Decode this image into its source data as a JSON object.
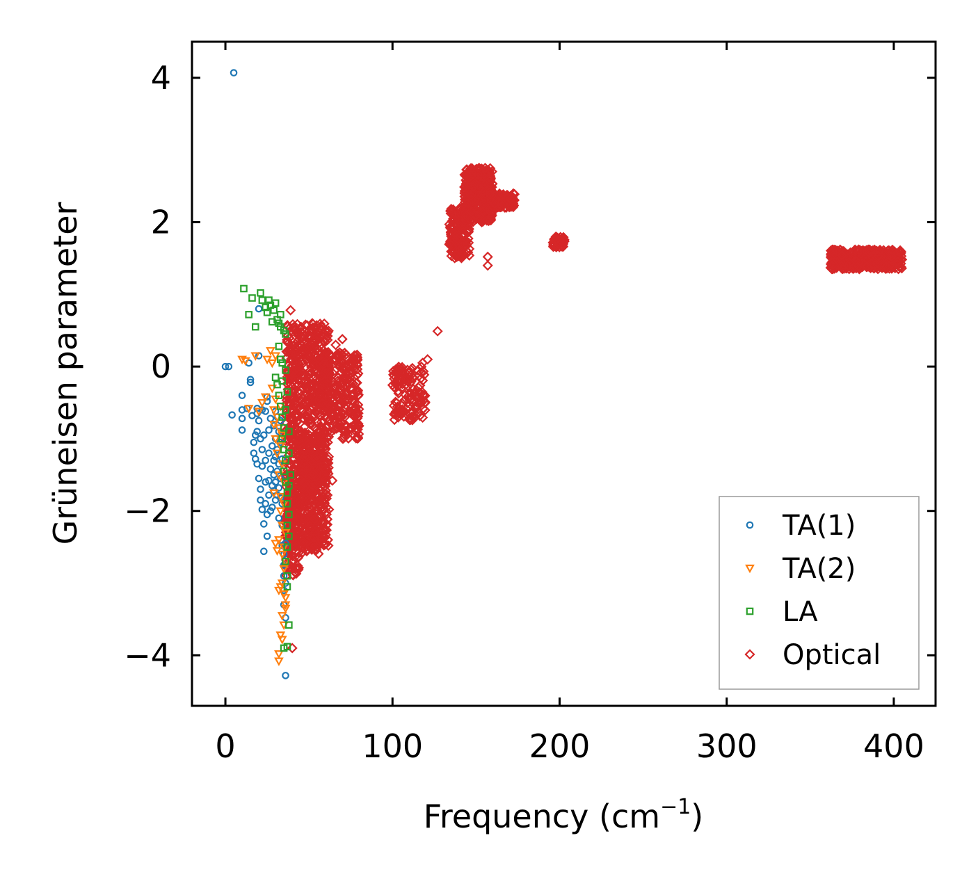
{
  "chart_data": {
    "type": "scatter",
    "title": "",
    "xlabel": "Frequency (cm",
    "xlabel_sup": "−1",
    "xlabel_close": ")",
    "ylabel": "Grüneisen parameter",
    "xlim": [
      -20,
      425
    ],
    "ylim": [
      -4.7,
      4.5
    ],
    "xticks": [
      0,
      100,
      200,
      300,
      400
    ],
    "xtick_labels": [
      "0",
      "100",
      "200",
      "300",
      "400"
    ],
    "yticks": [
      4,
      2,
      0,
      -2,
      -4
    ],
    "ytick_labels": [
      "4",
      "2",
      "0",
      "−2",
      "−4"
    ],
    "legend_position": "bottom-right",
    "grid": false,
    "series": [
      {
        "name": "TA(1)",
        "marker": "circle",
        "color": "#1f77b4",
        "points": [
          [
            5,
            4.07
          ],
          [
            0,
            0.0
          ],
          [
            2,
            0.0
          ],
          [
            4,
            -0.67
          ],
          [
            10,
            -0.4
          ],
          [
            10,
            -0.6
          ],
          [
            10,
            -0.72
          ],
          [
            10,
            -0.88
          ],
          [
            13,
            -0.58
          ],
          [
            14,
            0.05
          ],
          [
            15,
            -0.18
          ],
          [
            15,
            -0.22
          ],
          [
            16,
            -0.68
          ],
          [
            17,
            -1.05
          ],
          [
            17,
            -1.2
          ],
          [
            18,
            -0.95
          ],
          [
            18,
            -1.28
          ],
          [
            19,
            -0.58
          ],
          [
            19,
            -0.9
          ],
          [
            19,
            -1.35
          ],
          [
            20,
            0.15
          ],
          [
            20,
            0.8
          ],
          [
            20,
            -0.75
          ],
          [
            20,
            -1.55
          ],
          [
            21,
            -1.0
          ],
          [
            21,
            -1.7
          ],
          [
            21,
            -1.85
          ],
          [
            22,
            -0.6
          ],
          [
            22,
            -1.15
          ],
          [
            22,
            -1.38
          ],
          [
            22,
            -1.98
          ],
          [
            23,
            -2.18
          ],
          [
            23,
            -2.56
          ],
          [
            23,
            -0.95
          ],
          [
            24,
            -1.3
          ],
          [
            24,
            -1.6
          ],
          [
            24,
            -1.9
          ],
          [
            25,
            -0.42
          ],
          [
            25,
            -0.48
          ],
          [
            25,
            -2.35
          ],
          [
            25,
            -2.05
          ],
          [
            26,
            -0.88
          ],
          [
            26,
            -1.2
          ],
          [
            26,
            -1.58
          ],
          [
            26,
            -1.78
          ],
          [
            27,
            -2.0
          ],
          [
            27,
            -0.72
          ],
          [
            27,
            -1.42
          ],
          [
            28,
            -1.1
          ],
          [
            28,
            -1.65
          ],
          [
            28,
            -1.95
          ],
          [
            29,
            -0.82
          ],
          [
            29,
            -1.3
          ],
          [
            29,
            -1.5
          ],
          [
            29,
            -1.72
          ],
          [
            30,
            -1.0
          ],
          [
            30,
            -1.25
          ],
          [
            30,
            -1.6
          ],
          [
            30,
            -1.85
          ],
          [
            31,
            -0.7
          ],
          [
            31,
            -1.15
          ],
          [
            31,
            -1.45
          ],
          [
            31,
            -1.78
          ],
          [
            32,
            -0.9
          ],
          [
            32,
            -1.35
          ],
          [
            32,
            -1.68
          ],
          [
            32,
            -2.1
          ],
          [
            33,
            -1.05
          ],
          [
            33,
            -1.55
          ],
          [
            33,
            -1.82
          ],
          [
            34,
            -1.28
          ],
          [
            34,
            -1.9
          ],
          [
            34,
            -2.2
          ],
          [
            34,
            -2.48
          ],
          [
            35,
            -2.6
          ],
          [
            35,
            -2.75
          ],
          [
            35,
            -2.9
          ],
          [
            35,
            -3.1
          ],
          [
            35,
            -3.3
          ],
          [
            36,
            -2.45
          ],
          [
            36,
            -3.0
          ],
          [
            36,
            -3.48
          ],
          [
            36,
            -4.28
          ],
          [
            33,
            -0.75
          ],
          [
            24,
            -0.62
          ],
          [
            19,
            -0.65
          ],
          [
            30,
            -0.62
          ]
        ]
      },
      {
        "name": "TA(2)",
        "marker": "triangle-down",
        "color": "#ff7f0e",
        "points": [
          [
            10,
            0.1
          ],
          [
            12,
            0.08
          ],
          [
            14,
            -0.58
          ],
          [
            18,
            0.15
          ],
          [
            20,
            -0.62
          ],
          [
            22,
            -0.5
          ],
          [
            24,
            -0.42
          ],
          [
            25,
            0.1
          ],
          [
            27,
            0.22
          ],
          [
            28,
            0.05
          ],
          [
            28,
            -0.3
          ],
          [
            29,
            -0.6
          ],
          [
            29,
            -0.8
          ],
          [
            30,
            -0.45
          ],
          [
            30,
            -1.0
          ],
          [
            30,
            0.15
          ],
          [
            31,
            -0.7
          ],
          [
            31,
            -1.2
          ],
          [
            32,
            -0.85
          ],
          [
            32,
            -1.5
          ],
          [
            32,
            -2.4
          ],
          [
            33,
            -0.55
          ],
          [
            33,
            -1.1
          ],
          [
            33,
            -1.8
          ],
          [
            33,
            -2.0
          ],
          [
            34,
            -0.95
          ],
          [
            34,
            -1.35
          ],
          [
            34,
            -2.2
          ],
          [
            34,
            -2.6
          ],
          [
            34,
            -3.0
          ],
          [
            35,
            -1.6
          ],
          [
            35,
            -1.9
          ],
          [
            35,
            -2.5
          ],
          [
            35,
            -2.8
          ],
          [
            35,
            -3.15
          ],
          [
            36,
            -2.3
          ],
          [
            36,
            -2.7
          ],
          [
            36,
            -3.2
          ],
          [
            36,
            -3.3
          ],
          [
            36,
            -3.35
          ],
          [
            33,
            -3.05
          ],
          [
            32,
            -3.1
          ],
          [
            33,
            -3.72
          ],
          [
            34,
            -3.78
          ],
          [
            32,
            -3.98
          ],
          [
            32,
            -4.08
          ],
          [
            30,
            -2.45
          ],
          [
            31,
            -2.55
          ],
          [
            29,
            -1.75
          ],
          [
            34,
            -3.45
          ],
          [
            35,
            -3.58
          ]
        ]
      },
      {
        "name": "LA",
        "marker": "square",
        "color": "#2ca02c",
        "points": [
          [
            11,
            1.08
          ],
          [
            14,
            0.72
          ],
          [
            16,
            0.95
          ],
          [
            18,
            0.55
          ],
          [
            21,
            1.02
          ],
          [
            22,
            0.92
          ],
          [
            24,
            0.82
          ],
          [
            25,
            0.75
          ],
          [
            26,
            0.92
          ],
          [
            27,
            0.85
          ],
          [
            28,
            0.62
          ],
          [
            29,
            0.78
          ],
          [
            30,
            0.88
          ],
          [
            31,
            0.65
          ],
          [
            32,
            0.6
          ],
          [
            33,
            0.72
          ],
          [
            32,
            0.28
          ],
          [
            33,
            0.1
          ],
          [
            34,
            0.05
          ],
          [
            30,
            -0.15
          ],
          [
            31,
            -0.25
          ],
          [
            32,
            -0.4
          ],
          [
            33,
            -0.55
          ],
          [
            34,
            -0.7
          ],
          [
            35,
            -0.85
          ],
          [
            34,
            -1.0
          ],
          [
            35,
            -1.15
          ],
          [
            36,
            -1.3
          ],
          [
            35,
            -1.45
          ],
          [
            36,
            -1.6
          ],
          [
            37,
            -1.75
          ],
          [
            37,
            -1.9
          ],
          [
            38,
            -2.05
          ],
          [
            37,
            -2.2
          ],
          [
            38,
            -2.35
          ],
          [
            37,
            -2.5
          ],
          [
            36,
            -2.7
          ],
          [
            37,
            -2.9
          ],
          [
            37,
            -3.05
          ],
          [
            38,
            -3.58
          ],
          [
            37,
            -3.88
          ],
          [
            35,
            -3.9
          ],
          [
            36,
            -0.05
          ],
          [
            37,
            -0.35
          ],
          [
            36,
            -0.6
          ],
          [
            38,
            -0.9
          ],
          [
            38,
            -1.2
          ],
          [
            39,
            -1.5
          ],
          [
            38,
            -1.65
          ],
          [
            34,
            -0.2
          ],
          [
            35,
            0.5
          ],
          [
            36,
            0.45
          ],
          [
            33,
            0.55
          ]
        ]
      },
      {
        "name": "Optical",
        "marker": "diamond",
        "color": "#d62728",
        "points": [],
        "clusters": [
          {
            "x": [
              36,
              62
            ],
            "y": [
              -2.5,
              0.6
            ],
            "count": 950
          },
          {
            "x": [
              36,
              44
            ],
            "y": [
              -2.9,
              -1.7
            ],
            "count": 120
          },
          {
            "x": [
              45,
              56
            ],
            "y": [
              -2.6,
              -1.2
            ],
            "count": 120
          },
          {
            "x": [
              56,
              80
            ],
            "y": [
              -1.0,
              0.2
            ],
            "count": 260
          },
          {
            "x": [
              100,
              120
            ],
            "y": [
              -0.75,
              0.0
            ],
            "count": 130
          },
          {
            "x": [
              134,
              146
            ],
            "y": [
              1.5,
              2.2
            ],
            "count": 160
          },
          {
            "x": [
              143,
              160
            ],
            "y": [
              2.0,
              2.75
            ],
            "count": 330
          },
          {
            "x": [
              158,
              173
            ],
            "y": [
              2.2,
              2.4
            ],
            "count": 140
          },
          {
            "x": [
              196,
              203
            ],
            "y": [
              1.65,
              1.8
            ],
            "count": 60
          },
          {
            "x": [
              362,
              405
            ],
            "y": [
              1.35,
              1.62
            ],
            "count": 420
          }
        ],
        "outliers": [
          [
            127,
            0.49
          ],
          [
            157,
            1.52
          ],
          [
            157,
            1.4
          ],
          [
            121,
            0.1
          ],
          [
            118,
            0.05
          ],
          [
            39,
            0.78
          ],
          [
            41,
            0.55
          ],
          [
            45,
            0.4
          ],
          [
            48,
            0.58
          ],
          [
            52,
            0.6
          ],
          [
            58,
            0.55
          ],
          [
            66,
            0.3
          ],
          [
            70,
            0.38
          ],
          [
            78,
            0.15
          ],
          [
            64,
            -1.58
          ],
          [
            40,
            -3.9
          ],
          [
            42,
            -2.85
          ]
        ]
      }
    ]
  }
}
